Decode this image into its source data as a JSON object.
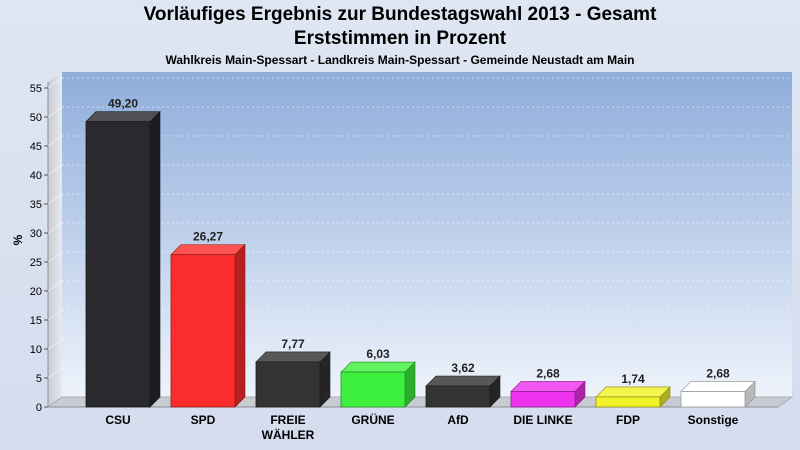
{
  "title_line1": "Vorläufiges Ergebnis zur Bundestagswahl 2013 - Gesamt",
  "title_line2": "Erststimmen in Prozent",
  "subtitle": "Wahlkreis Main-Spessart - Landkreis Main-Spessart - Gemeinde Neustadt am Main",
  "chart_data": {
    "type": "bar",
    "categories": [
      "CSU",
      "SPD",
      "FREIE WÄHLER",
      "GRÜNE",
      "AfD",
      "DIE LINKE",
      "FDP",
      "Sonstige"
    ],
    "category_lines": [
      [
        "CSU"
      ],
      [
        "SPD"
      ],
      [
        "FREIE",
        "WÄHLER"
      ],
      [
        "GRÜNE"
      ],
      [
        "AfD"
      ],
      [
        "DIE LINKE"
      ],
      [
        "FDP"
      ],
      [
        "Sonstige"
      ]
    ],
    "values": [
      49.2,
      26.27,
      7.77,
      6.03,
      3.62,
      2.68,
      1.74,
      2.68
    ],
    "value_labels": [
      "49,20",
      "26,27",
      "7,77",
      "6,03",
      "3,62",
      "2,68",
      "1,74",
      "2,68"
    ],
    "colors": [
      "#2a2a2e",
      "#fb2c2c",
      "#333333",
      "#3df03d",
      "#333333",
      "#ee33ee",
      "#f2f22a",
      "#ffffff"
    ],
    "ylabel": "%",
    "ylim": [
      0,
      55
    ],
    "yticks": [
      0,
      5,
      10,
      15,
      20,
      25,
      30,
      35,
      40,
      45,
      50,
      55
    ],
    "grid": true
  }
}
